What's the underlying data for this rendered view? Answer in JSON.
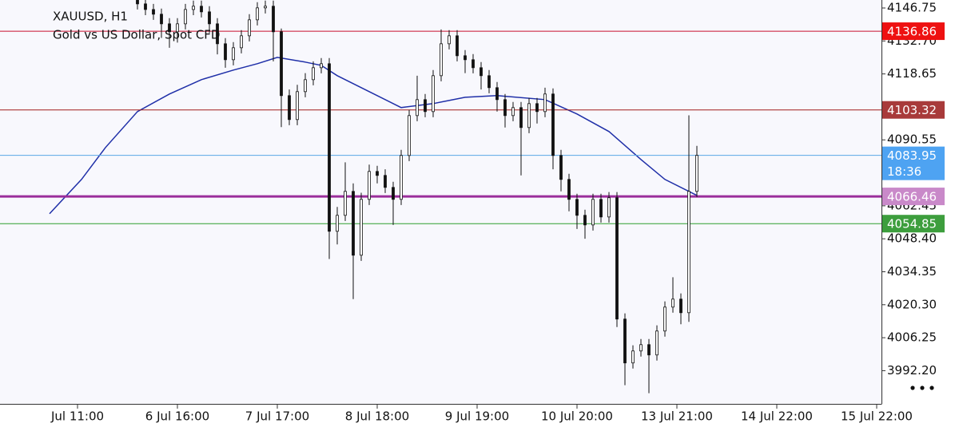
{
  "chart_data": {
    "type": "candlestick",
    "title": "XAUUSD, H1",
    "subtitle": "Gold vs US Dollar, Spot CFD",
    "countdown": "18:36",
    "xlim": [
      -19.4,
      200.6
    ],
    "xticks": [
      {
        "value": 0,
        "label": "Jul 11:00"
      },
      {
        "value": 25,
        "label": "6 Jul 16:00"
      },
      {
        "value": 50,
        "label": "7 Jul 17:00"
      },
      {
        "value": 75,
        "label": "8 Jul 18:00"
      },
      {
        "value": 100,
        "label": "9 Jul 19:00"
      },
      {
        "value": 125,
        "label": "10 Jul 20:00"
      },
      {
        "value": 150,
        "label": "13 Jul 21:00"
      },
      {
        "value": 175,
        "label": "14 Jul 22:00"
      },
      {
        "value": 200,
        "label": "15 Jul 22:00"
      }
    ],
    "ylim": [
      3978.4,
      4150.15
    ],
    "yticks": [
      4146.75,
      {
        "value": 4132.7,
        "label": "4132.70"
      },
      4118.65,
      4090.55,
      4062.45,
      {
        "value": 4048.4,
        "label": "4048.40"
      },
      4034.35,
      {
        "value": 4020.3,
        "label": "4020.30"
      },
      4006.25,
      {
        "value": 3992.2,
        "label": "3992.20"
      }
    ],
    "x": [
      15,
      17,
      19,
      21,
      23,
      25,
      27,
      29,
      31,
      33,
      35,
      37,
      39,
      41,
      43,
      45,
      47,
      49,
      51,
      53,
      55,
      57,
      59,
      61,
      63,
      65,
      67,
      69,
      71,
      73,
      75,
      77,
      79,
      81,
      83,
      85,
      87,
      89,
      91,
      93,
      95,
      97,
      99,
      101,
      103,
      105,
      107,
      109,
      111,
      113,
      115,
      117,
      119,
      121,
      123,
      125,
      127,
      129,
      131,
      133,
      135,
      137,
      139,
      141,
      143,
      145,
      147,
      149,
      151,
      153,
      155
    ],
    "open": [
      4150.0,
      4148.5,
      4146.1,
      4144.1,
      4140.0,
      4136.6,
      4140.0,
      4146.1,
      4147.5,
      4145.1,
      4140.0,
      4131.5,
      4124.7,
      4129.8,
      4134.9,
      4141.7,
      4146.8,
      4147.5,
      4136.6,
      4109.4,
      4099.2,
      4111.1,
      4116.2,
      4121.3,
      4123.0,
      4051.6,
      4058.4,
      4068.6,
      4041.4,
      4065.2,
      4077.1,
      4075.4,
      4070.3,
      4065.2,
      4083.9,
      4100.9,
      4107.7,
      4102.6,
      4117.9,
      4131.5,
      4134.9,
      4126.4,
      4124.7,
      4121.3,
      4117.9,
      4112.8,
      4107.7,
      4100.9,
      4104.3,
      4095.8,
      4106.0,
      4102.6,
      4110.1,
      4083.9,
      4073.7,
      4065.2,
      4058.4,
      4054.3,
      4065.2,
      4057.7,
      4065.9,
      4014.2,
      3995.5,
      4000.6,
      4003.3,
      3998.9,
      4009.1,
      4019.3,
      4022.7,
      4016.9,
      4068.6
    ],
    "high": [
      4152.4,
      4150.9,
      4148.5,
      4146.5,
      4142.4,
      4142.4,
      4148.5,
      4149.9,
      4149.9,
      4147.5,
      4142.4,
      4133.9,
      4132.2,
      4137.3,
      4144.1,
      4149.2,
      4149.9,
      4149.9,
      4138.0,
      4112.0,
      4114.0,
      4119.0,
      4124.0,
      4125.4,
      4125.4,
      4062.0,
      4081.0,
      4072.0,
      4068.0,
      4080.0,
      4079.5,
      4078.0,
      4072.7,
      4086.3,
      4103.3,
      4117.9,
      4110.1,
      4120.3,
      4137.6,
      4137.3,
      4137.3,
      4128.8,
      4127.1,
      4123.7,
      4120.3,
      4115.2,
      4110.1,
      4106.7,
      4106.7,
      4108.4,
      4108.4,
      4112.8,
      4112.5,
      4086.3,
      4076.1,
      4067.6,
      4060.8,
      4067.6,
      4067.6,
      4068.3,
      4068.3,
      4016.6,
      4003.0,
      4005.7,
      4005.7,
      4011.5,
      4021.7,
      4032.0,
      4025.1,
      4101.0,
      4088.0
    ],
    "low": [
      4146.1,
      4143.7,
      4141.7,
      4134.0,
      4129.8,
      4132.0,
      4137.6,
      4143.7,
      4142.7,
      4136.0,
      4127.0,
      4121.3,
      4122.3,
      4127.4,
      4132.5,
      4139.3,
      4144.4,
      4124.0,
      4096.0,
      4096.8,
      4096.8,
      4108.7,
      4113.8,
      4118.9,
      4039.8,
      4046.0,
      4056.0,
      4022.7,
      4039.0,
      4062.8,
      4072.0,
      4067.9,
      4054.3,
      4062.8,
      4081.5,
      4098.5,
      4100.2,
      4100.2,
      4115.5,
      4129.1,
      4124.0,
      4119.0,
      4118.9,
      4112.0,
      4110.4,
      4102.6,
      4095.8,
      4098.5,
      4075.4,
      4093.4,
      4097.5,
      4100.2,
      4078.0,
      4068.6,
      4060.1,
      4052.6,
      4048.4,
      4051.9,
      4055.3,
      4055.3,
      4010.8,
      3986.0,
      3993.1,
      3998.2,
      3982.6,
      3996.5,
      4006.7,
      4016.9,
      4012.0,
      4013.0,
      4066.2
    ],
    "close": [
      4148.5,
      4146.1,
      4144.1,
      4140.0,
      4136.6,
      4140.0,
      4146.1,
      4147.5,
      4145.1,
      4140.0,
      4131.5,
      4124.7,
      4129.8,
      4134.9,
      4141.7,
      4146.8,
      4147.5,
      4136.6,
      4109.4,
      4099.2,
      4111.1,
      4116.2,
      4121.3,
      4123.0,
      4051.6,
      4058.4,
      4068.6,
      4041.4,
      4065.2,
      4077.1,
      4075.4,
      4070.3,
      4065.2,
      4083.9,
      4100.9,
      4107.7,
      4102.6,
      4117.9,
      4131.5,
      4134.9,
      4126.4,
      4124.7,
      4121.3,
      4117.9,
      4112.8,
      4107.7,
      4100.9,
      4104.3,
      4095.8,
      4106.0,
      4102.6,
      4110.1,
      4083.9,
      4073.7,
      4065.2,
      4058.4,
      4054.3,
      4065.2,
      4057.7,
      4065.9,
      4014.2,
      3995.5,
      4000.6,
      4003.3,
      3998.9,
      4009.1,
      4019.3,
      4022.7,
      4016.9,
      4068.6,
      4083.95
    ],
    "lines": [
      {
        "color": "#1f2fa8",
        "x": [
          -7,
          1,
          7,
          15,
          23,
          31,
          39,
          45,
          50,
          57,
          61,
          65,
          73,
          81,
          89,
          97,
          105,
          117,
          125,
          133,
          141,
          147,
          155
        ],
        "values": [
          4059.1,
          4073.7,
          4087.3,
          4102.6,
          4110.1,
          4116.2,
          4120.3,
          4123.0,
          4125.7,
          4123.7,
          4122.3,
          4117.9,
          4111.1,
          4104.3,
          4106.0,
          4108.7,
          4109.4,
          4107.7,
          4101.6,
          4094.1,
          4082.2,
          4073.7,
          4066.9
        ]
      }
    ],
    "hlines": [
      {
        "value": 4136.86,
        "color": "#c8102e",
        "label_color": "#ee1111",
        "width": 1
      },
      {
        "value": 4103.32,
        "color": "#a01c1c",
        "label_color": "#a83a3a",
        "width": 1
      },
      {
        "value": 4083.95,
        "color": "#5aa9e6",
        "label_color": "#4ea3f2",
        "width": 1,
        "current": true
      },
      {
        "value": 4066.46,
        "color": "#9b2d9b",
        "label_color": "#c989c9",
        "width": 3
      },
      {
        "value": 4054.85,
        "color": "#2e9e2e",
        "label_color": "#3d9e3d",
        "width": 1
      }
    ]
  }
}
